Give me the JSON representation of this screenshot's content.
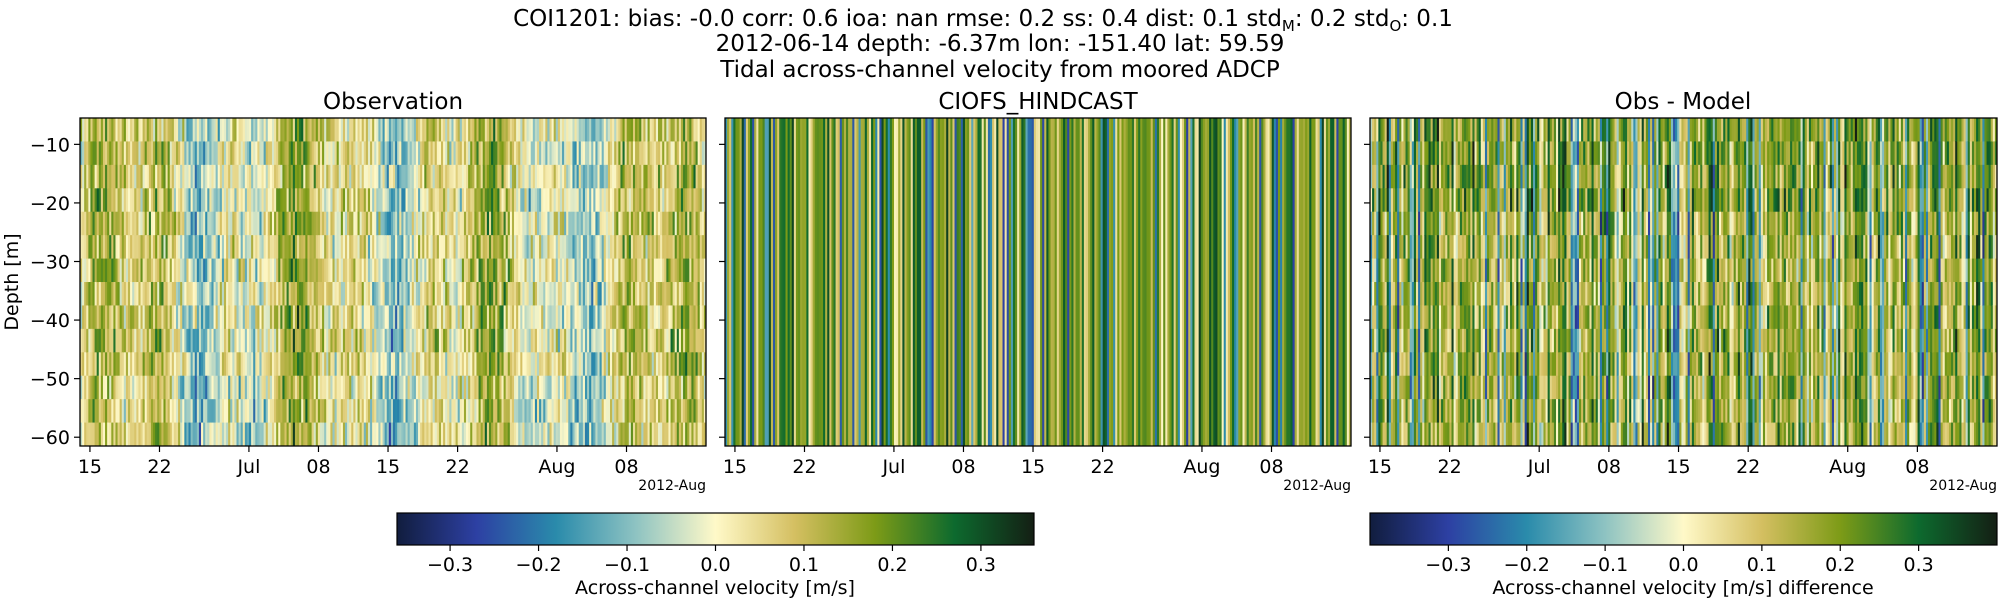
{
  "figure": {
    "title_lines": [
      "COI1201: bias: -0.0  corr: 0.6  ioa: nan  rmse: 0.2  ss: 0.4  dist: 0.1  std",
      "2012-06-14 depth: -6.37m lon: -151.40 lat: 59.59",
      "Tidal across-channel velocity from moored ADCP"
    ],
    "stats_line": {
      "prefix": "COI1201: bias: -0.0  corr: 0.6  ioa: nan  rmse: 0.2  ss: 0.4  dist: 0.1  ",
      "stdM_label": "std",
      "stdM_sub": "M",
      "stdM_value": ": 0.2  ",
      "stdO_label": "std",
      "stdO_sub": "O",
      "stdO_value": ": 0.1"
    },
    "location_line": "2012-06-14 depth: -6.37m lon: -151.40 lat: 59.59",
    "description_line": "Tidal across-channel velocity from moored ADCP"
  },
  "chart_data": [
    {
      "type": "heatmap",
      "title": "Observation",
      "ylabel": "Depth [m]",
      "xlabel": "",
      "x_tick_labels": [
        "15",
        "22",
        "Jul",
        "08",
        "15",
        "22",
        "Aug",
        "08"
      ],
      "x_offset_label": "2012-Aug",
      "y_ticks": [
        -10,
        -20,
        -30,
        -40,
        -50,
        -60
      ],
      "ylim": [
        -61.5,
        -5.5
      ],
      "xlim": [
        "2012-06-14",
        "2012-08-16"
      ],
      "value_range": [
        -0.36,
        0.36
      ],
      "colormap": "delta"
    },
    {
      "type": "heatmap",
      "title": "CIOFS_HINDCAST",
      "ylabel": "",
      "xlabel": "",
      "x_tick_labels": [
        "15",
        "22",
        "Jul",
        "08",
        "15",
        "22",
        "Aug",
        "08"
      ],
      "x_offset_label": "2012-Aug",
      "y_ticks": [
        -10,
        -20,
        -30,
        -40,
        -50,
        -60
      ],
      "ylim": [
        -61.5,
        -5.5
      ],
      "xlim": [
        "2012-06-14",
        "2012-08-16"
      ],
      "value_range": [
        -0.36,
        0.36
      ],
      "colormap": "delta"
    },
    {
      "type": "heatmap",
      "title": "Obs - Model",
      "ylabel": "",
      "xlabel": "",
      "x_tick_labels": [
        "15",
        "22",
        "Jul",
        "08",
        "15",
        "22",
        "Aug",
        "08"
      ],
      "x_offset_label": "2012-Aug",
      "y_ticks": [
        -10,
        -20,
        -30,
        -40,
        -50,
        -60
      ],
      "ylim": [
        -61.5,
        -5.5
      ],
      "xlim": [
        "2012-06-14",
        "2012-08-16"
      ],
      "value_range": [
        -0.4,
        0.4
      ],
      "colormap": "delta"
    }
  ],
  "colorbars": [
    {
      "label": "Across-channel velocity [m/s]",
      "tick_labels": [
        "−0.3",
        "−0.2",
        "−0.1",
        "0.0",
        "0.1",
        "0.2",
        "0.3"
      ],
      "ticks": [
        -0.3,
        -0.2,
        -0.1,
        0.0,
        0.1,
        0.2,
        0.3
      ],
      "range": [
        -0.36,
        0.36
      ]
    },
    {
      "label": "Across-channel velocity [m/s] difference",
      "tick_labels": [
        "−0.3",
        "−0.2",
        "−0.1",
        "0.0",
        "0.1",
        "0.2",
        "0.3"
      ],
      "ticks": [
        -0.3,
        -0.2,
        -0.1,
        0.0,
        0.1,
        0.2,
        0.3
      ],
      "range": [
        -0.4,
        0.4
      ]
    }
  ],
  "colors": {
    "colormap_stops": [
      "#111d3e",
      "#2d40a3",
      "#2a8bab",
      "#8ec3c2",
      "#fff9c8",
      "#d4bf61",
      "#7d9b17",
      "#0d6a2e",
      "#141f14"
    ]
  }
}
